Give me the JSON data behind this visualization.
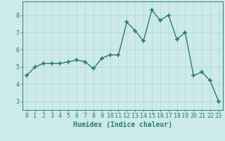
{
  "x": [
    0,
    1,
    2,
    3,
    4,
    5,
    6,
    7,
    8,
    9,
    10,
    11,
    12,
    13,
    14,
    15,
    16,
    17,
    18,
    19,
    20,
    21,
    22,
    23
  ],
  "y": [
    4.5,
    5.0,
    5.2,
    5.2,
    5.2,
    5.3,
    5.4,
    5.3,
    4.9,
    5.5,
    5.7,
    5.7,
    7.6,
    7.1,
    6.5,
    8.3,
    7.7,
    8.0,
    6.6,
    7.0,
    4.5,
    4.7,
    4.2,
    3.0
  ],
  "line_color": "#2d7d6e",
  "marker": "+",
  "markersize": 4,
  "linewidth": 1.0,
  "xlabel": "Humidex (Indice chaleur)",
  "xlabel_fontsize": 7,
  "background_color": "#cceae8",
  "grid_color": "#b8d8d5",
  "ylim": [
    2.5,
    8.8
  ],
  "xlim": [
    -0.5,
    23.5
  ],
  "yticks": [
    3,
    4,
    5,
    6,
    7,
    8
  ],
  "xticks": [
    0,
    1,
    2,
    3,
    4,
    5,
    6,
    7,
    8,
    9,
    10,
    11,
    12,
    13,
    14,
    15,
    16,
    17,
    18,
    19,
    20,
    21,
    22,
    23
  ],
  "tick_fontsize": 6,
  "axis_color": "#2d7d6e"
}
